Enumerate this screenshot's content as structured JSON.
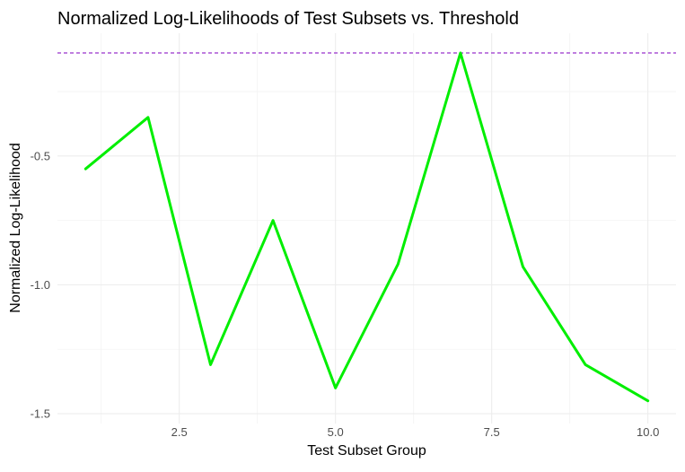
{
  "chart_data": {
    "type": "line",
    "title": "Normalized Log-Likelihoods of Test Subsets vs. Threshold",
    "xlabel": "Test Subset Group",
    "ylabel": "Normalized Log-Likelihood",
    "x": [
      1,
      2,
      3,
      4,
      5,
      6,
      7,
      8,
      9,
      10
    ],
    "series": [
      {
        "values": [
          -0.55,
          -0.35,
          -1.31,
          -0.75,
          -1.4,
          -0.92,
          -0.1,
          -0.93,
          -1.31,
          -1.45
        ],
        "color": "#00ee00"
      }
    ],
    "threshold": {
      "value": -0.1,
      "color": "#9932cc",
      "style": "dashed"
    },
    "xlim": [
      0.55,
      10.45
    ],
    "ylim": [
      -1.5,
      -0.1
    ],
    "x_ticks": [
      2.5,
      5.0,
      7.5,
      10.0
    ],
    "x_tick_labels": [
      "2.5",
      "5.0",
      "7.5",
      "10.0"
    ],
    "y_ticks": [
      -1.5,
      -1.0,
      -0.5
    ],
    "y_tick_labels": [
      "-1.5",
      "-1.0",
      "-0.5"
    ],
    "grid": true,
    "legend": "none"
  }
}
